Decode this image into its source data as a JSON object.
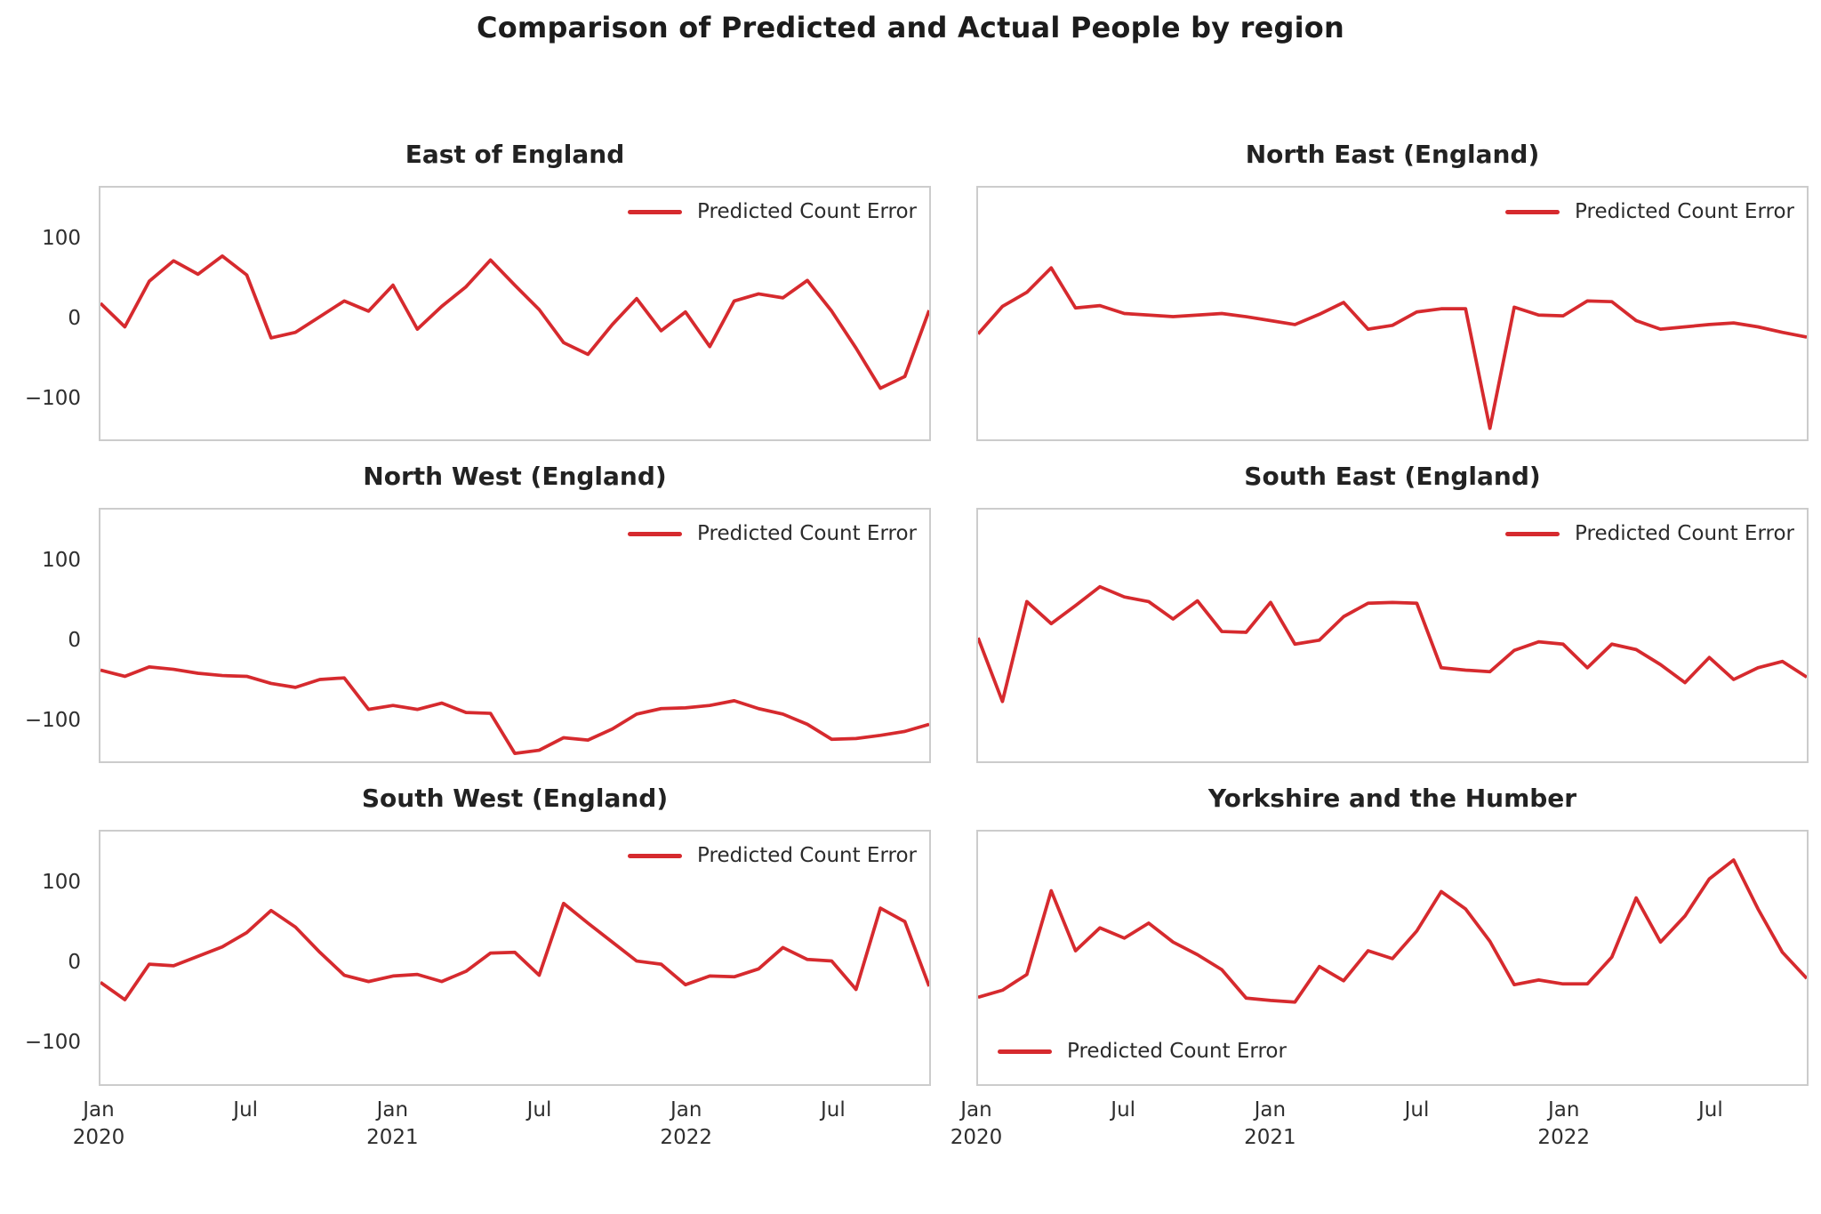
{
  "suptitle": "Comparison of Predicted and Actual People  by region",
  "legend_label": "Predicted Count Error",
  "colors": {
    "line": "#d62a2e",
    "spine": "#cccccc",
    "title_text": "#222222",
    "tick_text": "#2e2e2e"
  },
  "x_axis": {
    "start": "2020-01",
    "interval": "monthly",
    "n_points": 35,
    "tick_labels": [
      {
        "line1": "Jan",
        "line2": "2020",
        "month_index": 0
      },
      {
        "line1": "Jul",
        "line2": "",
        "month_index": 6
      },
      {
        "line1": "Jan",
        "line2": "2021",
        "month_index": 12
      },
      {
        "line1": "Jul",
        "line2": "",
        "month_index": 18
      },
      {
        "line1": "Jan",
        "line2": "2022",
        "month_index": 24
      },
      {
        "line1": "Jul",
        "line2": "",
        "month_index": 30
      }
    ]
  },
  "y_axis": {
    "min": -154,
    "max": 166,
    "grid": false,
    "ticks": [
      {
        "label": "100",
        "value": 100
      },
      {
        "label": "0",
        "value": 0
      },
      {
        "label": "−100",
        "value": -100
      }
    ]
  },
  "chart_data": [
    {
      "type": "line",
      "title": "East of England",
      "series_name": "Predicted Count Error",
      "legend_position": "upper-right",
      "values": [
        19,
        -11,
        47,
        73,
        56,
        79,
        55,
        -25,
        -18,
        2,
        22,
        9,
        42,
        -14,
        15,
        40,
        74,
        42,
        11,
        -31,
        -46,
        -8,
        25,
        -16,
        8,
        -36,
        22,
        31,
        26,
        48,
        9,
        -38,
        -89,
        -74,
        10
      ]
    },
    {
      "type": "line",
      "title": "North East (England)",
      "series_name": "Predicted Count Error",
      "legend_position": "upper-right",
      "values": [
        -20,
        15,
        33,
        64,
        13,
        16,
        6,
        4,
        2,
        4,
        6,
        2,
        -3,
        -8,
        5,
        20,
        -14,
        -9,
        8,
        12,
        12,
        -140,
        14,
        4,
        3,
        22,
        21,
        -3,
        -14,
        -11,
        -8,
        -6,
        -11,
        -18,
        -24
      ]
    },
    {
      "type": "line",
      "title": "North West (England)",
      "series_name": "Predicted Count Error",
      "legend_position": "upper-right",
      "values": [
        -38,
        -46,
        -34,
        -37,
        -42,
        -45,
        -46,
        -55,
        -60,
        -50,
        -48,
        -88,
        -83,
        -88,
        -80,
        -92,
        -93,
        -144,
        -140,
        -124,
        -127,
        -113,
        -94,
        -87,
        -86,
        -83,
        -77,
        -87,
        -94,
        -107,
        -126,
        -125,
        -121,
        -116,
        -107
      ]
    },
    {
      "type": "line",
      "title": "South East (England)",
      "series_name": "Predicted Count Error",
      "legend_position": "upper-right",
      "values": [
        3,
        -78,
        49,
        21,
        44,
        68,
        55,
        49,
        27,
        50,
        11,
        10,
        48,
        -5,
        0,
        30,
        47,
        48,
        47,
        -35,
        -38,
        -40,
        -13,
        -2,
        -5,
        -35,
        -5,
        -12,
        -31,
        -54,
        -22,
        -50,
        -35,
        -27,
        -47
      ]
    },
    {
      "type": "line",
      "title": "South West (England)",
      "series_name": "Predicted Count Error",
      "legend_position": "upper-right",
      "values": [
        -25,
        -47,
        -2,
        -4,
        8,
        20,
        38,
        66,
        45,
        13,
        -16,
        -24,
        -17,
        -15,
        -24,
        -11,
        12,
        13,
        -16,
        75,
        50,
        26,
        2,
        -2,
        -28,
        -17,
        -18,
        -8,
        19,
        4,
        2,
        -34,
        69,
        52,
        -30
      ]
    },
    {
      "type": "line",
      "title": "Yorkshire and the Humber",
      "series_name": "Predicted Count Error",
      "legend_position": "lower-left",
      "values": [
        -44,
        -35,
        -15,
        91,
        15,
        44,
        31,
        50,
        26,
        10,
        -9,
        -45,
        -48,
        -50,
        -5,
        -23,
        15,
        5,
        40,
        90,
        68,
        27,
        -28,
        -22,
        -27,
        -27,
        7,
        82,
        26,
        59,
        106,
        130,
        68,
        13,
        -20
      ]
    }
  ]
}
